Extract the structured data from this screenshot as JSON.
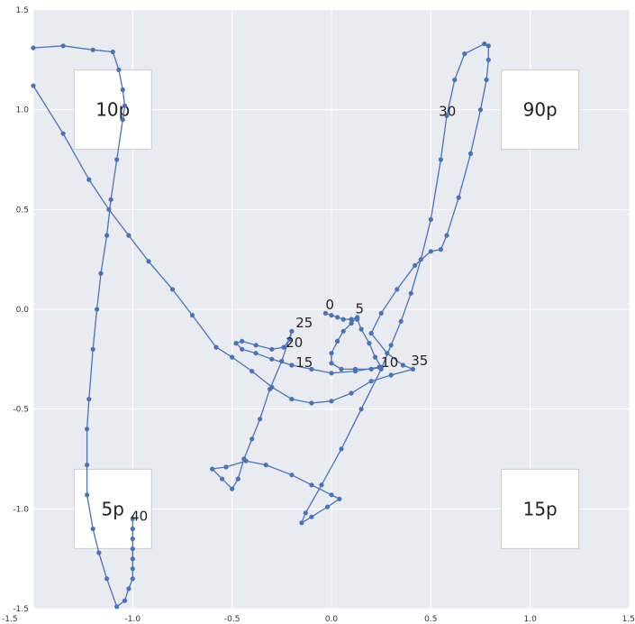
{
  "chart_data": {
    "type": "line",
    "title": "",
    "xlabel": "",
    "ylabel": "",
    "xlim": [
      -1.5,
      1.5
    ],
    "ylim": [
      -1.5,
      1.5
    ],
    "xticks": [
      "-1.5",
      "-1.0",
      "-0.5",
      "0.0",
      "0.5",
      "1.0",
      "1.5"
    ],
    "yticks": [
      "1.5",
      "1.0",
      "0.5",
      "0.0",
      "-0.5",
      "-1.0",
      "-1.5"
    ],
    "grid": true,
    "colors": {
      "background": "#eaeaf2",
      "grid": "#ffffff",
      "line": "#4c72b0",
      "box": "#ffffff",
      "box_border": "#cccccc"
    },
    "boxes": [
      {
        "label": "10p",
        "x": -1.1,
        "y": 1.0
      },
      {
        "label": "90p",
        "x": 1.05,
        "y": 1.0
      },
      {
        "label": "5p",
        "x": -1.1,
        "y": -1.0
      },
      {
        "label": "15p",
        "x": 1.05,
        "y": -1.0
      }
    ],
    "point_labels": [
      {
        "text": "0",
        "x": -0.03,
        "y": 0.0
      },
      {
        "text": "5",
        "x": 0.12,
        "y": -0.02
      },
      {
        "text": "25",
        "x": -0.18,
        "y": -0.09
      },
      {
        "text": "20",
        "x": -0.23,
        "y": -0.19
      },
      {
        "text": "15",
        "x": -0.18,
        "y": -0.29
      },
      {
        "text": "10",
        "x": 0.25,
        "y": -0.29
      },
      {
        "text": "35",
        "x": 0.4,
        "y": -0.28
      },
      {
        "text": "30",
        "x": 0.54,
        "y": 0.97
      },
      {
        "text": "40",
        "x": -1.01,
        "y": -1.06
      }
    ],
    "series": [
      {
        "values": [
          [
            -0.03,
            -0.02
          ],
          [
            0.0,
            -0.03
          ],
          [
            0.03,
            -0.04
          ],
          [
            0.06,
            -0.05
          ],
          [
            0.1,
            -0.05
          ],
          [
            0.13,
            -0.04
          ],
          [
            0.1,
            -0.07
          ],
          [
            0.06,
            -0.11
          ],
          [
            0.03,
            -0.16
          ],
          [
            0.0,
            -0.22
          ],
          [
            0.0,
            -0.27
          ],
          [
            0.05,
            -0.3
          ],
          [
            0.12,
            -0.3
          ],
          [
            0.2,
            -0.3
          ],
          [
            0.25,
            -0.29
          ],
          [
            0.22,
            -0.24
          ],
          [
            0.19,
            -0.17
          ],
          [
            0.15,
            -0.1
          ],
          [
            0.13,
            -0.05
          ]
        ]
      },
      {
        "values": [
          [
            0.24,
            -0.29
          ],
          [
            0.12,
            -0.31
          ],
          [
            0.0,
            -0.32
          ],
          [
            -0.1,
            -0.3
          ],
          [
            -0.2,
            -0.28
          ],
          [
            -0.3,
            -0.25
          ],
          [
            -0.38,
            -0.22
          ],
          [
            -0.45,
            -0.2
          ],
          [
            -0.48,
            -0.17
          ],
          [
            -0.45,
            -0.16
          ],
          [
            -0.38,
            -0.18
          ],
          [
            -0.3,
            -0.2
          ],
          [
            -0.24,
            -0.19
          ],
          [
            -0.21,
            -0.15
          ],
          [
            -0.2,
            -0.11
          ]
        ]
      },
      {
        "values": [
          [
            -0.2,
            -0.11
          ],
          [
            -0.25,
            -0.26
          ],
          [
            -0.31,
            -0.4
          ],
          [
            -0.36,
            -0.55
          ],
          [
            -0.4,
            -0.65
          ],
          [
            -0.44,
            -0.75
          ],
          [
            -0.47,
            -0.85
          ],
          [
            -0.5,
            -0.9
          ],
          [
            -0.55,
            -0.85
          ],
          [
            -0.6,
            -0.8
          ],
          [
            -0.53,
            -0.79
          ],
          [
            -0.43,
            -0.76
          ],
          [
            -0.33,
            -0.78
          ],
          [
            -0.2,
            -0.83
          ],
          [
            -0.1,
            -0.88
          ],
          [
            0.0,
            -0.93
          ],
          [
            0.04,
            -0.95
          ],
          [
            -0.02,
            -0.99
          ],
          [
            -0.1,
            -1.04
          ],
          [
            -0.15,
            -1.07
          ],
          [
            -0.13,
            -1.02
          ],
          [
            -0.05,
            -0.88
          ],
          [
            0.05,
            -0.7
          ],
          [
            0.15,
            -0.5
          ],
          [
            0.25,
            -0.3
          ],
          [
            0.3,
            -0.18
          ],
          [
            0.35,
            -0.06
          ],
          [
            0.4,
            0.08
          ],
          [
            0.45,
            0.25
          ],
          [
            0.5,
            0.45
          ],
          [
            0.55,
            0.75
          ],
          [
            0.58,
            0.97
          ],
          [
            0.62,
            1.15
          ],
          [
            0.67,
            1.28
          ],
          [
            0.77,
            1.33
          ],
          [
            0.79,
            1.32
          ],
          [
            0.79,
            1.25
          ],
          [
            0.78,
            1.15
          ],
          [
            0.75,
            1.0
          ],
          [
            0.7,
            0.78
          ],
          [
            0.64,
            0.56
          ],
          [
            0.58,
            0.37
          ],
          [
            0.55,
            0.3
          ],
          [
            0.5,
            0.29
          ],
          [
            0.42,
            0.22
          ],
          [
            0.33,
            0.1
          ],
          [
            0.25,
            -0.02
          ],
          [
            0.2,
            -0.12
          ],
          [
            0.28,
            -0.22
          ],
          [
            0.36,
            -0.28
          ],
          [
            0.41,
            -0.3
          ],
          [
            0.3,
            -0.33
          ],
          [
            0.2,
            -0.36
          ],
          [
            0.1,
            -0.42
          ],
          [
            0.0,
            -0.46
          ],
          [
            -0.1,
            -0.47
          ],
          [
            -0.2,
            -0.45
          ],
          [
            -0.3,
            -0.39
          ],
          [
            -0.4,
            -0.31
          ],
          [
            -0.5,
            -0.24
          ],
          [
            -0.58,
            -0.19
          ],
          [
            -0.7,
            -0.03
          ],
          [
            -0.8,
            0.1
          ],
          [
            -0.92,
            0.24
          ],
          [
            -1.02,
            0.37
          ],
          [
            -1.12,
            0.5
          ],
          [
            -1.22,
            0.65
          ],
          [
            -1.35,
            0.88
          ],
          [
            -1.5,
            1.12
          ]
        ]
      },
      {
        "values": [
          [
            -1.5,
            1.31
          ],
          [
            -1.35,
            1.32
          ],
          [
            -1.2,
            1.3
          ],
          [
            -1.1,
            1.29
          ],
          [
            -1.07,
            1.2
          ],
          [
            -1.05,
            1.1
          ],
          [
            -1.04,
            1.02
          ],
          [
            -1.05,
            0.95
          ],
          [
            -1.08,
            0.75
          ],
          [
            -1.11,
            0.55
          ],
          [
            -1.13,
            0.37
          ],
          [
            -1.16,
            0.18
          ],
          [
            -1.18,
            0.0
          ],
          [
            -1.2,
            -0.2
          ],
          [
            -1.22,
            -0.45
          ],
          [
            -1.23,
            -0.6
          ],
          [
            -1.23,
            -0.78
          ],
          [
            -1.23,
            -0.93
          ],
          [
            -1.2,
            -1.1
          ],
          [
            -1.17,
            -1.22
          ],
          [
            -1.13,
            -1.35
          ],
          [
            -1.08,
            -1.49
          ],
          [
            -1.04,
            -1.46
          ],
          [
            -1.02,
            -1.4
          ],
          [
            -1.0,
            -1.35
          ],
          [
            -1.0,
            -1.3
          ],
          [
            -1.0,
            -1.25
          ],
          [
            -1.0,
            -1.2
          ],
          [
            -1.0,
            -1.15
          ],
          [
            -1.0,
            -1.1
          ],
          [
            -1.0,
            -1.05
          ]
        ]
      }
    ]
  }
}
